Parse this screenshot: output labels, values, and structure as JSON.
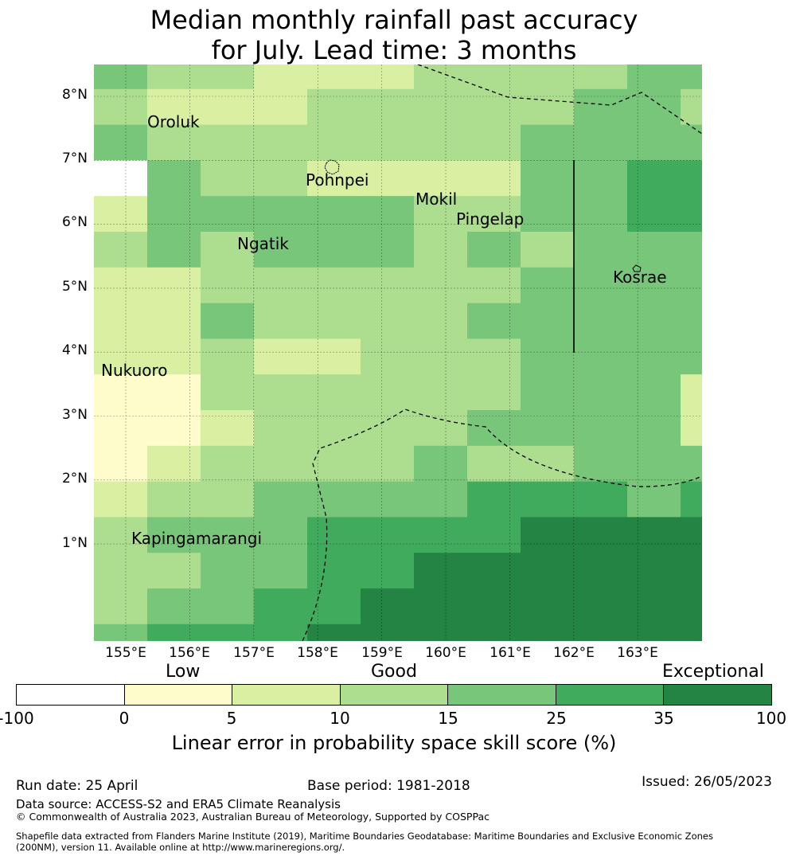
{
  "title": {
    "line1": "Median monthly rainfall past accuracy",
    "line2": "for July. Lead time: 3 months"
  },
  "map": {
    "lat_ticks": [
      "8°N",
      "7°N",
      "6°N",
      "5°N",
      "4°N",
      "3°N",
      "2°N",
      "1°N"
    ],
    "lon_ticks": [
      "155°E",
      "156°E",
      "157°E",
      "158°E",
      "159°E",
      "160°E",
      "161°E",
      "162°E",
      "163°E"
    ],
    "places": [
      {
        "name": "Oroluk"
      },
      {
        "name": "Pohnpei"
      },
      {
        "name": "Mokil"
      },
      {
        "name": "Pingelap"
      },
      {
        "name": "Ngatik"
      },
      {
        "name": "Kosrae"
      },
      {
        "name": "Nukuoro"
      },
      {
        "name": "Kapingamarangi"
      }
    ],
    "colors": [
      "#ffffff",
      "#fffccc",
      "#d9f0a3",
      "#addd8e",
      "#78c679",
      "#41ab5d",
      "#238443"
    ],
    "grid": [
      "4332223333444",
      "3222333334432",
      "4333333344444",
      "0433222244554",
      "2444443344554",
      "3434443434443",
      "2233333344443",
      "2243333444443",
      "2232233344444",
      "1133333344422",
      "1123333444424",
      "1233334334445",
      "2334444555456",
      "3444555566666",
      "3344556666666",
      "3445566666666",
      "4555666666666",
      "3566666666666",
      "4565666666666"
    ]
  },
  "colorbar": {
    "categories": [
      "Low",
      "Good",
      "Exceptional"
    ],
    "ticks": [
      "-100",
      "0",
      "5",
      "10",
      "15",
      "25",
      "35",
      "100"
    ],
    "colors": [
      "#ffffff",
      "#fffccc",
      "#d9f0a3",
      "#addd8e",
      "#78c679",
      "#41ab5d",
      "#238443"
    ],
    "label": "Linear error in probability space skill score (%)"
  },
  "footer": {
    "run_date": "Run date: 25 April",
    "base_period": "Base period: 1981-2018",
    "issued": "Issued: 26/05/2023",
    "data_source": "Data source: ACCESS-S2 and ERA5 Climate Reanalysis",
    "copyright": "© Commonwealth of Australia 2023, Australian Bureau of Meteorology, Supported by COSPPac",
    "shapefile": "Shapefile data extracted from Flanders Marine Institute (2019), Maritime Boundaries Geodatabase: Maritime Boundaries and Exclusive Economic Zones",
    "shapefile2": "(200NM), version 11. Available online at http://www.marineregions.org/."
  }
}
